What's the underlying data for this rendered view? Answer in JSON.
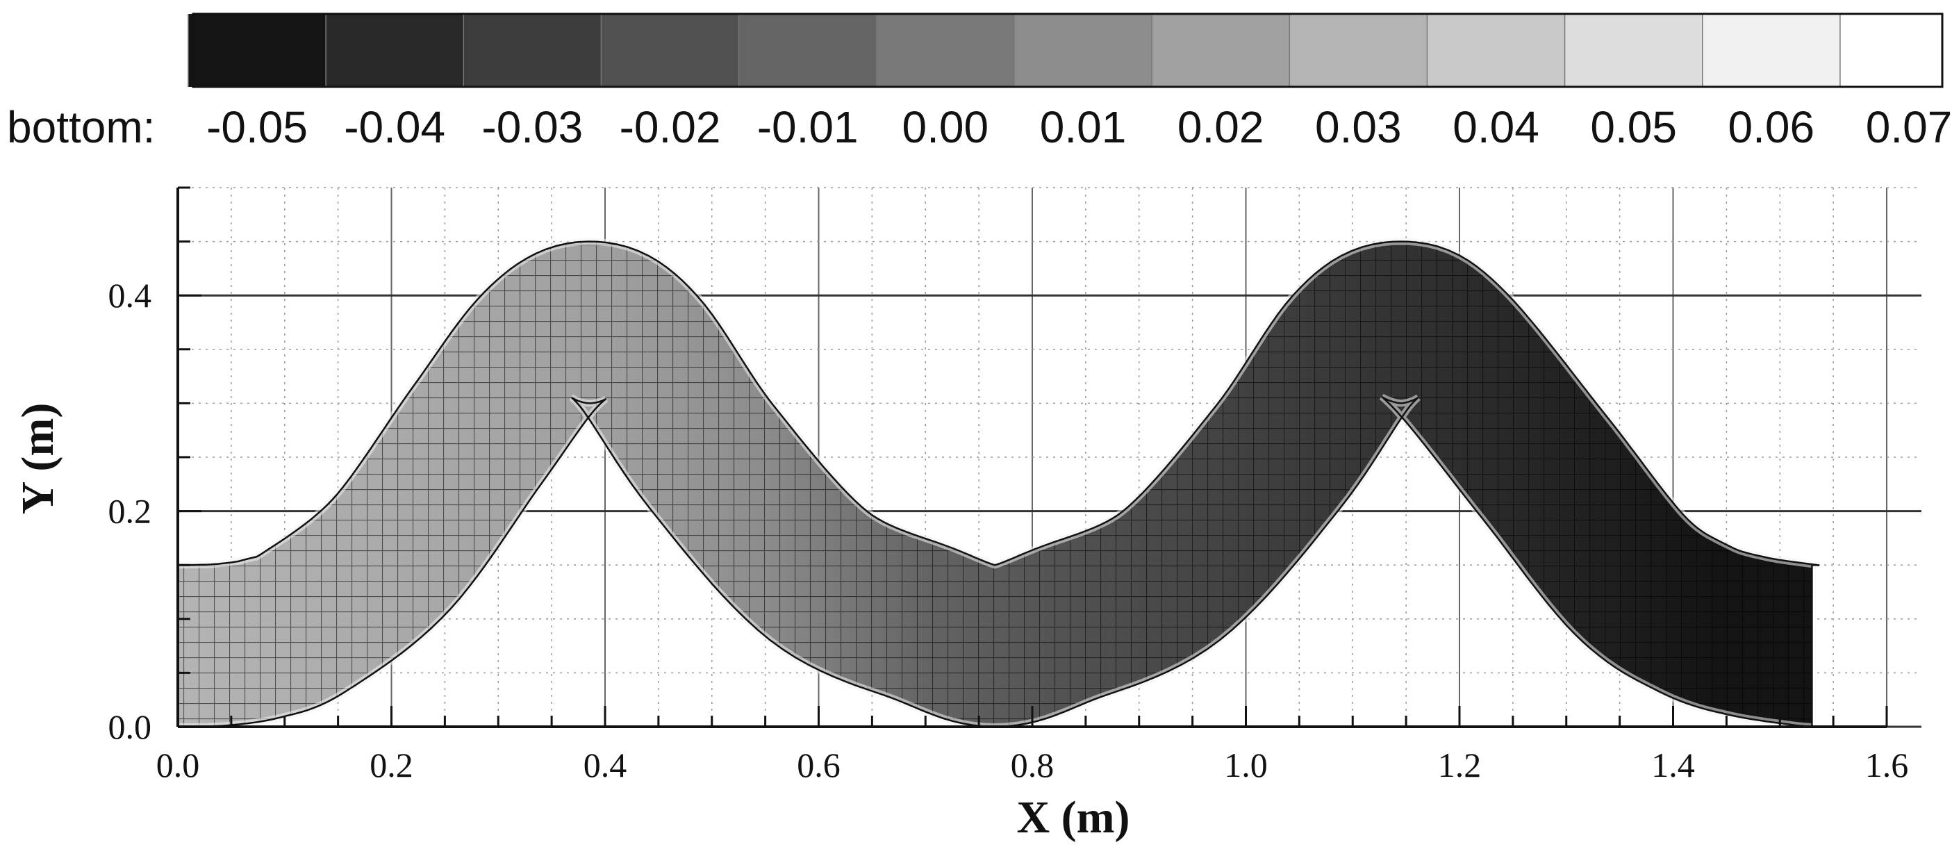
{
  "chart_data": {
    "type": "heatmap",
    "title": "",
    "xlabel": "X (m)",
    "ylabel": "Y (m)",
    "xlim": [
      0.0,
      1.6
    ],
    "ylim": [
      0.0,
      0.5
    ],
    "x_ticks": [
      "0.0",
      "0.2",
      "0.4",
      "0.6",
      "0.8",
      "1.0",
      "1.2",
      "1.4",
      "1.6"
    ],
    "y_ticks": [
      "0.0",
      "0.2",
      "0.4"
    ],
    "grid": true,
    "colorbar": {
      "title": "bottom:",
      "placement": "top",
      "levels": [
        "-0.05",
        "-0.04",
        "-0.03",
        "-0.02",
        "-0.01",
        "0.00",
        "0.01",
        "0.02",
        "0.03",
        "0.04",
        "0.05",
        "0.06",
        "0.07"
      ],
      "colors": [
        "#000000",
        "#141414",
        "#282828",
        "#3c3c3c",
        "#505050",
        "#646464",
        "#787878",
        "#8c8c8c",
        "#a0a0a0",
        "#b4b4b4",
        "#c8c8c8",
        "#dcdcdc",
        "#f0f0f0",
        "#ffffff"
      ]
    },
    "channel": {
      "x_start": 0.0,
      "x_end": 1.53,
      "centerline": [
        {
          "x": 0.0,
          "y": 0.075
        },
        {
          "x": 0.04,
          "y": 0.076
        },
        {
          "x": 0.08,
          "y": 0.082
        },
        {
          "x": 0.12,
          "y": 0.098
        },
        {
          "x": 0.2,
          "y": 0.16
        },
        {
          "x": 0.28,
          "y": 0.27
        },
        {
          "x": 0.34,
          "y": 0.35
        },
        {
          "x": 0.385,
          "y": 0.375
        },
        {
          "x": 0.43,
          "y": 0.35
        },
        {
          "x": 0.5,
          "y": 0.25
        },
        {
          "x": 0.6,
          "y": 0.14
        },
        {
          "x": 0.7,
          "y": 0.095
        },
        {
          "x": 0.765,
          "y": 0.075
        },
        {
          "x": 0.83,
          "y": 0.095
        },
        {
          "x": 0.93,
          "y": 0.14
        },
        {
          "x": 1.03,
          "y": 0.25
        },
        {
          "x": 1.1,
          "y": 0.35
        },
        {
          "x": 1.145,
          "y": 0.375
        },
        {
          "x": 1.19,
          "y": 0.35
        },
        {
          "x": 1.28,
          "y": 0.24
        },
        {
          "x": 1.36,
          "y": 0.14
        },
        {
          "x": 1.42,
          "y": 0.1
        },
        {
          "x": 1.47,
          "y": 0.084
        },
        {
          "x": 1.53,
          "y": 0.075
        }
      ],
      "width": 0.15,
      "bottom_elevation_profile": [
        {
          "x": 0.0,
          "value": 0.03
        },
        {
          "x": 0.4,
          "value": 0.02
        },
        {
          "x": 0.55,
          "value": 0.01
        },
        {
          "x": 0.7,
          "value": -0.01
        },
        {
          "x": 0.85,
          "value": -0.02
        },
        {
          "x": 1.05,
          "value": -0.03
        },
        {
          "x": 1.25,
          "value": -0.04
        },
        {
          "x": 1.44,
          "value": -0.05
        },
        {
          "x": 1.53,
          "value": -0.05
        }
      ]
    }
  }
}
